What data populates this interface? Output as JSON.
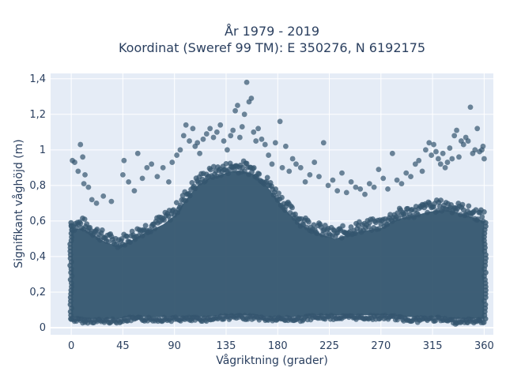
{
  "chart_data": {
    "type": "scatter",
    "title": "År 1979 - 2019",
    "subtitle": "Koordinat (Sweref 99 TM): E 350276, N 6192175",
    "xlabel": "Vågriktning (grader)",
    "ylabel": "Signifikant våghöjd (m)",
    "xlim": [
      -18,
      368
    ],
    "ylim": [
      -0.04,
      1.43
    ],
    "x_ticks": [
      0,
      45,
      90,
      135,
      180,
      225,
      270,
      315,
      360
    ],
    "x_tick_labels": [
      "0",
      "45",
      "90",
      "135",
      "180",
      "225",
      "270",
      "315",
      "360"
    ],
    "y_ticks": [
      0,
      0.2,
      0.4,
      0.6,
      0.8,
      1.0,
      1.2,
      1.4
    ],
    "y_tick_labels": [
      "0",
      "0,2",
      "0,4",
      "0,6",
      "0,8",
      "1",
      "1,2",
      "1,4"
    ],
    "grid": true,
    "marker_color": "#34566f",
    "plot_bg": "#e5ecf6",
    "envelope": {
      "x": [
        0,
        10,
        20,
        30,
        40,
        50,
        60,
        70,
        80,
        90,
        100,
        110,
        120,
        130,
        140,
        150,
        160,
        170,
        180,
        190,
        200,
        210,
        220,
        230,
        240,
        250,
        260,
        270,
        280,
        290,
        300,
        310,
        320,
        330,
        340,
        350,
        360
      ],
      "dense_top": [
        0.55,
        0.56,
        0.52,
        0.48,
        0.46,
        0.48,
        0.52,
        0.55,
        0.58,
        0.63,
        0.72,
        0.8,
        0.84,
        0.86,
        0.88,
        0.88,
        0.86,
        0.8,
        0.72,
        0.64,
        0.58,
        0.55,
        0.52,
        0.5,
        0.52,
        0.54,
        0.55,
        0.56,
        0.6,
        0.62,
        0.63,
        0.65,
        0.66,
        0.66,
        0.64,
        0.62,
        0.6
      ],
      "dense_bottom": [
        0.06,
        0.05,
        0.05,
        0.05,
        0.05,
        0.06,
        0.06,
        0.06,
        0.06,
        0.06,
        0.06,
        0.06,
        0.06,
        0.07,
        0.07,
        0.07,
        0.07,
        0.06,
        0.06,
        0.06,
        0.06,
        0.07,
        0.07,
        0.07,
        0.07,
        0.07,
        0.07,
        0.07,
        0.07,
        0.06,
        0.06,
        0.06,
        0.06,
        0.05,
        0.05,
        0.05,
        0.05
      ]
    },
    "points": [
      {
        "x": 1,
        "y": 0.94
      },
      {
        "x": 3,
        "y": 0.93
      },
      {
        "x": 6,
        "y": 0.88
      },
      {
        "x": 8,
        "y": 1.03
      },
      {
        "x": 10,
        "y": 0.96
      },
      {
        "x": 11,
        "y": 0.81
      },
      {
        "x": 12,
        "y": 0.86
      },
      {
        "x": 15,
        "y": 0.79
      },
      {
        "x": 18,
        "y": 0.72
      },
      {
        "x": 22,
        "y": 0.7
      },
      {
        "x": 28,
        "y": 0.74
      },
      {
        "x": 35,
        "y": 0.71
      },
      {
        "x": 45,
        "y": 0.86
      },
      {
        "x": 46,
        "y": 0.94
      },
      {
        "x": 50,
        "y": 0.82
      },
      {
        "x": 55,
        "y": 0.77
      },
      {
        "x": 58,
        "y": 0.98
      },
      {
        "x": 62,
        "y": 0.84
      },
      {
        "x": 66,
        "y": 0.9
      },
      {
        "x": 70,
        "y": 0.92
      },
      {
        "x": 75,
        "y": 0.85
      },
      {
        "x": 80,
        "y": 0.9
      },
      {
        "x": 85,
        "y": 0.82
      },
      {
        "x": 88,
        "y": 0.93
      },
      {
        "x": 92,
        "y": 0.97
      },
      {
        "x": 95,
        "y": 1.0
      },
      {
        "x": 98,
        "y": 1.08
      },
      {
        "x": 100,
        "y": 1.14
      },
      {
        "x": 103,
        "y": 1.05
      },
      {
        "x": 106,
        "y": 1.12
      },
      {
        "x": 108,
        "y": 1.02
      },
      {
        "x": 110,
        "y": 1.04
      },
      {
        "x": 112,
        "y": 0.98
      },
      {
        "x": 115,
        "y": 1.06
      },
      {
        "x": 118,
        "y": 1.09
      },
      {
        "x": 121,
        "y": 1.12
      },
      {
        "x": 124,
        "y": 1.07
      },
      {
        "x": 127,
        "y": 1.1
      },
      {
        "x": 130,
        "y": 1.14
      },
      {
        "x": 133,
        "y": 1.05
      },
      {
        "x": 136,
        "y": 1.0
      },
      {
        "x": 139,
        "y": 1.08
      },
      {
        "x": 141,
        "y": 1.11
      },
      {
        "x": 143,
        "y": 1.22
      },
      {
        "x": 145,
        "y": 1.25
      },
      {
        "x": 147,
        "y": 1.07
      },
      {
        "x": 149,
        "y": 1.13
      },
      {
        "x": 151,
        "y": 1.2
      },
      {
        "x": 153,
        "y": 1.38
      },
      {
        "x": 155,
        "y": 1.27
      },
      {
        "x": 157,
        "y": 1.29
      },
      {
        "x": 159,
        "y": 1.1
      },
      {
        "x": 161,
        "y": 1.05
      },
      {
        "x": 163,
        "y": 1.12
      },
      {
        "x": 166,
        "y": 1.06
      },
      {
        "x": 169,
        "y": 1.03
      },
      {
        "x": 172,
        "y": 0.97
      },
      {
        "x": 175,
        "y": 0.92
      },
      {
        "x": 178,
        "y": 1.04
      },
      {
        "x": 182,
        "y": 1.16
      },
      {
        "x": 184,
        "y": 0.9
      },
      {
        "x": 187,
        "y": 1.02
      },
      {
        "x": 190,
        "y": 0.88
      },
      {
        "x": 193,
        "y": 0.95
      },
      {
        "x": 196,
        "y": 0.92
      },
      {
        "x": 200,
        "y": 0.9
      },
      {
        "x": 204,
        "y": 0.82
      },
      {
        "x": 208,
        "y": 0.86
      },
      {
        "x": 212,
        "y": 0.93
      },
      {
        "x": 216,
        "y": 0.85
      },
      {
        "x": 220,
        "y": 1.04
      },
      {
        "x": 224,
        "y": 0.8
      },
      {
        "x": 228,
        "y": 0.83
      },
      {
        "x": 232,
        "y": 0.77
      },
      {
        "x": 236,
        "y": 0.87
      },
      {
        "x": 240,
        "y": 0.76
      },
      {
        "x": 244,
        "y": 0.82
      },
      {
        "x": 248,
        "y": 0.79
      },
      {
        "x": 252,
        "y": 0.78
      },
      {
        "x": 256,
        "y": 0.75
      },
      {
        "x": 260,
        "y": 0.81
      },
      {
        "x": 264,
        "y": 0.79
      },
      {
        "x": 268,
        "y": 0.89
      },
      {
        "x": 272,
        "y": 0.84
      },
      {
        "x": 276,
        "y": 0.78
      },
      {
        "x": 280,
        "y": 0.98
      },
      {
        "x": 284,
        "y": 0.83
      },
      {
        "x": 288,
        "y": 0.81
      },
      {
        "x": 292,
        "y": 0.87
      },
      {
        "x": 296,
        "y": 0.85
      },
      {
        "x": 300,
        "y": 0.92
      },
      {
        "x": 303,
        "y": 0.94
      },
      {
        "x": 306,
        "y": 0.88
      },
      {
        "x": 309,
        "y": 1.0
      },
      {
        "x": 312,
        "y": 1.04
      },
      {
        "x": 314,
        "y": 0.97
      },
      {
        "x": 316,
        "y": 1.03
      },
      {
        "x": 318,
        "y": 0.99
      },
      {
        "x": 320,
        "y": 0.95
      },
      {
        "x": 322,
        "y": 0.92
      },
      {
        "x": 324,
        "y": 0.98
      },
      {
        "x": 326,
        "y": 0.9
      },
      {
        "x": 328,
        "y": 0.93
      },
      {
        "x": 330,
        "y": 1.01
      },
      {
        "x": 332,
        "y": 0.95
      },
      {
        "x": 334,
        "y": 1.08
      },
      {
        "x": 336,
        "y": 1.11
      },
      {
        "x": 338,
        "y": 0.96
      },
      {
        "x": 340,
        "y": 1.05
      },
      {
        "x": 342,
        "y": 1.03
      },
      {
        "x": 344,
        "y": 1.07
      },
      {
        "x": 346,
        "y": 1.05
      },
      {
        "x": 348,
        "y": 1.24
      },
      {
        "x": 350,
        "y": 0.98
      },
      {
        "x": 352,
        "y": 1.0
      },
      {
        "x": 354,
        "y": 1.12
      },
      {
        "x": 356,
        "y": 0.99
      },
      {
        "x": 358,
        "y": 1.0
      },
      {
        "x": 359,
        "y": 1.02
      },
      {
        "x": 360,
        "y": 0.95
      },
      {
        "x": 12,
        "y": 0.03
      },
      {
        "x": 105,
        "y": 0.04
      },
      {
        "x": 180,
        "y": 0.05
      },
      {
        "x": 302,
        "y": 0.03
      },
      {
        "x": 335,
        "y": 0.02
      },
      {
        "x": 345,
        "y": 0.03
      },
      {
        "x": 356,
        "y": 0.04
      }
    ]
  }
}
